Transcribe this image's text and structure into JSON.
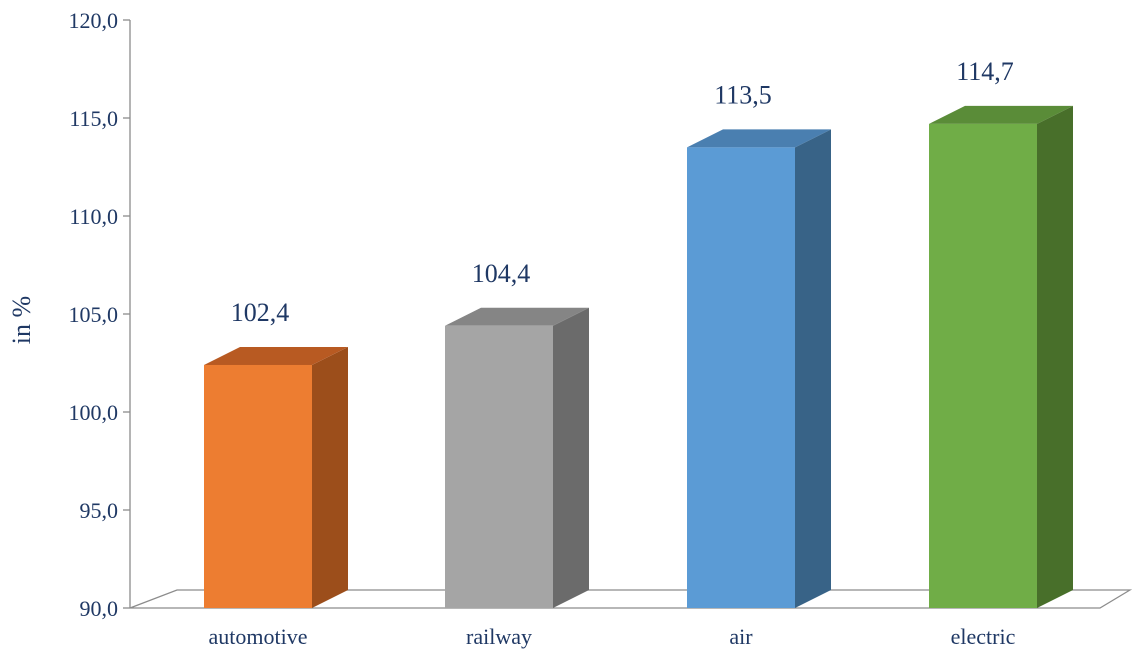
{
  "chart_data": {
    "type": "bar",
    "ylabel": "in  %",
    "ylim": [
      90,
      120
    ],
    "y_ticks": [
      "90,0",
      "95,0",
      "100,0",
      "105,0",
      "110,0",
      "115,0",
      "120,0"
    ],
    "y_tick_values": [
      90,
      95,
      100,
      105,
      110,
      115,
      120
    ],
    "categories": [
      "automotive",
      "railway",
      "air",
      "electric"
    ],
    "values": [
      102.4,
      104.4,
      113.5,
      114.7
    ],
    "data_labels": [
      "102,4",
      "104,4",
      "113,5",
      "114,7"
    ],
    "grid": false,
    "style": "3d-column",
    "colors": [
      {
        "front": "#ed7d31",
        "side": "#9c4e1b",
        "top": "#b85a22"
      },
      {
        "front": "#a5a5a5",
        "side": "#6b6b6b",
        "top": "#858585"
      },
      {
        "front": "#5b9bd5",
        "side": "#386387",
        "top": "#4a7fb0"
      },
      {
        "front": "#70ad47",
        "side": "#486f2a",
        "top": "#5a8c38"
      }
    ]
  }
}
